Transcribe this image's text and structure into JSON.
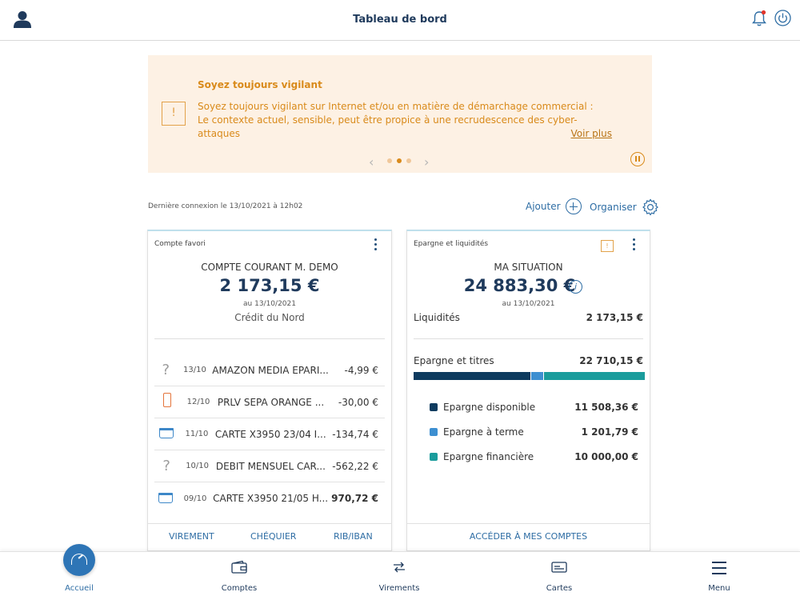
{
  "header": {
    "title": "Tableau de bord"
  },
  "banner": {
    "title": "Soyez toujours vigilant",
    "line1": "Soyez toujours vigilant sur Internet et/ou en matière de démarchage commercial :",
    "line2": "Le contexte actuel, sensible, peut être propice à une recrudescence des cyber-attaques",
    "more_label": "Voir plus",
    "warn_glyph": "!",
    "slides": 3,
    "active_slide": 2
  },
  "toolbar": {
    "last_connection": "Dernière connexion le 13/10/2021 à 12h02",
    "add_label": "Ajouter",
    "organize_label": "Organiser"
  },
  "favorite_account": {
    "header": "Compte favori",
    "account_name": "COMPTE COURANT M. DEMO",
    "balance": "2 173,15  €",
    "date": "au 13/10/2021",
    "bank": "Crédit du Nord",
    "transactions": [
      {
        "icon": "question-icon",
        "date": "13/10",
        "label": "AMAZON MEDIA EPARI...",
        "amount": "-4,99 €",
        "positive": false
      },
      {
        "icon": "phone-icon",
        "date": "12/10",
        "label": "PRLV SEPA ORANGE ...",
        "amount": "-30,00 €",
        "positive": false
      },
      {
        "icon": "basket-icon",
        "date": "11/10",
        "label": "CARTE X3950 23/04 I...",
        "amount": "-134,74 €",
        "positive": false
      },
      {
        "icon": "question-icon",
        "date": "10/10",
        "label": "DEBIT MENSUEL CAR...",
        "amount": "-562,22 €",
        "positive": false
      },
      {
        "icon": "basket-icon",
        "date": "09/10",
        "label": "CARTE X3950 21/05 H...",
        "amount": "970,72 €",
        "positive": true
      }
    ],
    "actions": {
      "transfer": "VIREMENT",
      "checkbook": "CHÉQUIER",
      "rib": "RIB/IBAN"
    }
  },
  "savings": {
    "header": "Epargne et liquidités",
    "title": "MA SITUATION",
    "total": "24 883,30 €",
    "date": "au 13/10/2021",
    "liquidity_label": "Liquidités",
    "liquidity_value": "2 173,15 €",
    "savings_label": "Epargne et titres",
    "savings_value": "22 710,15 €",
    "info_glyph": "i",
    "breakdown": [
      {
        "label": "Epargne disponible",
        "value": "11 508,36 €",
        "amount": 11508.36,
        "color": "#0e3b5f"
      },
      {
        "label": "Epargne à terme",
        "value": "1 201,79 €",
        "amount": 1201.79,
        "color": "#3d8fd1"
      },
      {
        "label": "Epargne financière",
        "value": "10 000,00 €",
        "amount": 10000.0,
        "color": "#1a9c9c"
      }
    ],
    "action": "ACCÉDER À MES COMPTES"
  },
  "tabbar": {
    "home": "Accueil",
    "accounts": "Comptes",
    "transfers": "Virements",
    "cards": "Cartes",
    "menu": "Menu"
  },
  "colors": {
    "primary": "#2e6da4",
    "navy": "#1f3a5c",
    "warning": "#d98a1a",
    "banner_bg": "#fdf1e4"
  }
}
